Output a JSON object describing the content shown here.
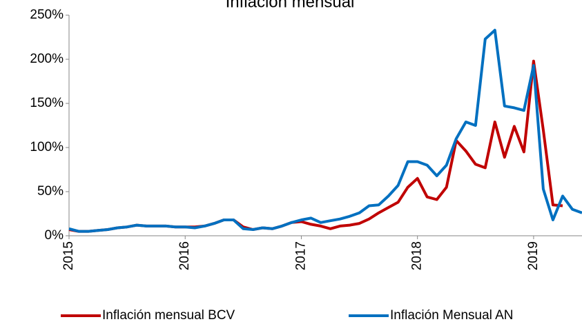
{
  "chart_data": {
    "type": "line",
    "title": "Inflación mensual",
    "categories": [
      "2015",
      null,
      null,
      null,
      null,
      null,
      null,
      null,
      null,
      null,
      null,
      null,
      "2016",
      null,
      null,
      null,
      null,
      null,
      null,
      null,
      null,
      null,
      null,
      null,
      "2017",
      null,
      null,
      null,
      null,
      null,
      null,
      null,
      null,
      null,
      null,
      null,
      "2018",
      null,
      null,
      null,
      null,
      null,
      null,
      null,
      null,
      null,
      null,
      null,
      "2019",
      null,
      null,
      null,
      null,
      null
    ],
    "series": [
      {
        "name": "Inflación mensual BCV",
        "color": "#c00000",
        "values": [
          7,
          5,
          5,
          6,
          7,
          9,
          10,
          12,
          11,
          11,
          11,
          10,
          10,
          10,
          11,
          14,
          18,
          18,
          10,
          7,
          9,
          8,
          11,
          15,
          16,
          13,
          11,
          8,
          11,
          12,
          14,
          19,
          26,
          32,
          38,
          55,
          65,
          44,
          41,
          55,
          108,
          96,
          81,
          77,
          129,
          89,
          124,
          95,
          198,
          120,
          35,
          34,
          null,
          null
        ]
      },
      {
        "name": "Inflación Mensual AN",
        "color": "#0070c0",
        "values": [
          8,
          5,
          5,
          6,
          7,
          9,
          10,
          12,
          11,
          11,
          11,
          10,
          10,
          9,
          11,
          14,
          18,
          18,
          8,
          7,
          9,
          8,
          11,
          15,
          18,
          20,
          15,
          17,
          19,
          22,
          26,
          34,
          35,
          45,
          57,
          84,
          84,
          80,
          68,
          80,
          110,
          129,
          125,
          223,
          233,
          147,
          145,
          142,
          193,
          53,
          18,
          45,
          30,
          26
        ]
      }
    ],
    "ylim": [
      0,
      250
    ],
    "yticks": [
      {
        "value": 0,
        "label": "0%"
      },
      {
        "value": 50,
        "label": "50%"
      },
      {
        "value": 100,
        "label": "100%"
      },
      {
        "value": 150,
        "label": "150%"
      },
      {
        "value": 200,
        "label": "200%"
      },
      {
        "value": 250,
        "label": "250%"
      }
    ],
    "legend": "bottom"
  }
}
